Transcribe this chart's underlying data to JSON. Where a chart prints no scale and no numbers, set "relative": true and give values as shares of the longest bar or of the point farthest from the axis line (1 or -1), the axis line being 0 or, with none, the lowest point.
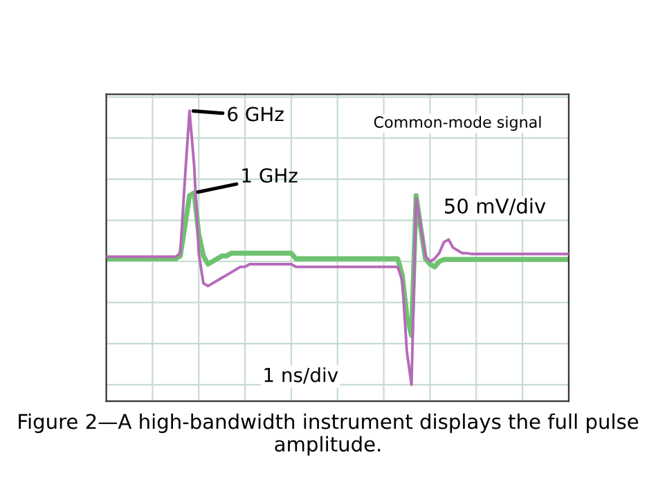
{
  "chart_data": {
    "type": "line",
    "relative": true,
    "grid": true,
    "legend": false,
    "marker": "none",
    "line_style": "solid",
    "title": "Figure 2—A high-bandwidth instrument displays the full pulse amplitude.",
    "annotations": [
      "Common-mode signal",
      "50 mV/div",
      "1 ns/div"
    ],
    "categories": [
      null,
      null,
      null,
      null,
      null,
      null,
      null,
      null,
      null,
      null,
      null,
      null,
      null,
      null,
      null,
      null,
      null,
      null,
      null,
      null,
      null,
      null,
      null,
      null,
      null,
      null,
      null,
      null,
      null,
      null,
      null,
      null,
      null,
      null,
      null,
      null,
      null,
      null,
      null,
      null,
      null,
      null,
      null,
      null,
      null,
      null,
      null,
      null,
      null,
      null,
      null,
      null,
      null,
      null,
      null,
      null,
      null,
      null,
      null,
      null,
      null,
      null,
      null,
      null,
      null,
      null,
      null,
      null,
      null,
      null,
      null,
      null,
      null,
      null,
      null,
      null,
      null,
      null,
      null,
      null,
      null,
      null,
      null,
      null,
      null,
      null,
      null,
      null,
      null,
      null,
      null,
      null,
      null,
      null,
      null,
      null,
      null,
      null,
      null,
      null,
      null
    ],
    "series": [
      {
        "name": "6 GHz",
        "color": "#b56ab9",
        "values": [
          0.467,
          0.467,
          0.467,
          0.467,
          0.467,
          0.467,
          0.467,
          0.467,
          0.467,
          0.467,
          0.467,
          0.467,
          0.467,
          0.467,
          0.467,
          0.467,
          0.48,
          0.75,
          1.0,
          0.8,
          0.48,
          0.37,
          0.36,
          0.37,
          0.38,
          0.39,
          0.4,
          0.41,
          0.42,
          0.43,
          0.43,
          0.44,
          0.44,
          0.44,
          0.44,
          0.44,
          0.44,
          0.44,
          0.44,
          0.44,
          0.44,
          0.43,
          0.43,
          0.43,
          0.43,
          0.43,
          0.43,
          0.43,
          0.43,
          0.43,
          0.43,
          0.43,
          0.43,
          0.43,
          0.43,
          0.43,
          0.43,
          0.43,
          0.43,
          0.43,
          0.43,
          0.43,
          0.43,
          0.43,
          0.38,
          0.12,
          0.0,
          0.68,
          0.58,
          0.47,
          0.45,
          0.46,
          0.48,
          0.52,
          0.53,
          0.5,
          0.49,
          0.48,
          0.48,
          0.477,
          0.477,
          0.477,
          0.477,
          0.477,
          0.477,
          0.477,
          0.477,
          0.477,
          0.477,
          0.477,
          0.477,
          0.477,
          0.477,
          0.477,
          0.477,
          0.477,
          0.477,
          0.477,
          0.477,
          0.477,
          0.477
        ]
      },
      {
        "name": "1 GHz",
        "color": "#6fc26f",
        "values": [
          0.46,
          0.46,
          0.46,
          0.46,
          0.46,
          0.46,
          0.46,
          0.46,
          0.46,
          0.46,
          0.46,
          0.46,
          0.46,
          0.46,
          0.46,
          0.46,
          0.47,
          0.58,
          0.69,
          0.7,
          0.55,
          0.47,
          0.44,
          0.45,
          0.46,
          0.47,
          0.47,
          0.48,
          0.48,
          0.48,
          0.48,
          0.48,
          0.48,
          0.48,
          0.48,
          0.48,
          0.48,
          0.48,
          0.48,
          0.48,
          0.48,
          0.46,
          0.46,
          0.46,
          0.46,
          0.46,
          0.46,
          0.46,
          0.46,
          0.46,
          0.46,
          0.46,
          0.46,
          0.46,
          0.46,
          0.46,
          0.46,
          0.46,
          0.46,
          0.46,
          0.46,
          0.46,
          0.46,
          0.46,
          0.4,
          0.25,
          0.18,
          0.69,
          0.57,
          0.46,
          0.44,
          0.43,
          0.45,
          0.457,
          0.457,
          0.457,
          0.457,
          0.457,
          0.457,
          0.457,
          0.457,
          0.457,
          0.457,
          0.457,
          0.457,
          0.457,
          0.457,
          0.457,
          0.457,
          0.457,
          0.457,
          0.457,
          0.457,
          0.457,
          0.457,
          0.457,
          0.457,
          0.457,
          0.457,
          0.457,
          0.457
        ]
      }
    ]
  }
}
